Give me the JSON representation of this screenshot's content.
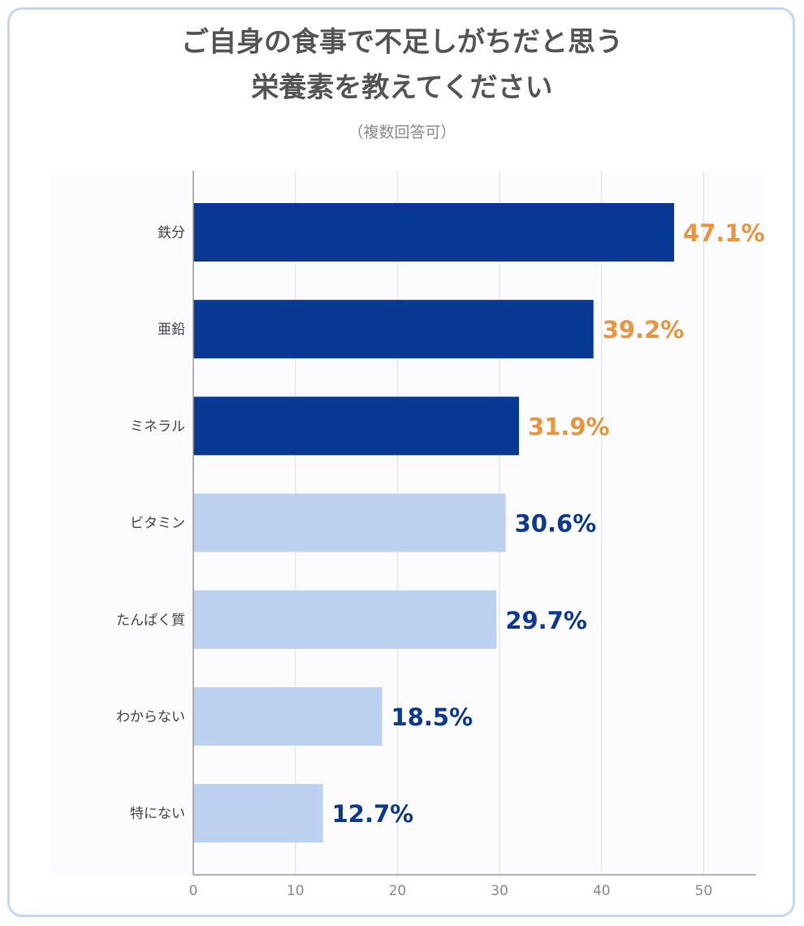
{
  "chart_data": {
    "type": "bar",
    "orientation": "horizontal",
    "title_lines": [
      "ご自身の食事で不足しがちだと思う",
      "栄養素を教えてください"
    ],
    "subtitle": "（複数回答可）",
    "categories": [
      "鉄分",
      "亜鉛",
      "ミネラル",
      "ビタミン",
      "たんぱく質",
      "わからない",
      "特にない"
    ],
    "values": [
      47.1,
      39.2,
      31.9,
      30.6,
      29.7,
      18.5,
      12.7
    ],
    "value_labels": [
      "47.1%",
      "39.2%",
      "31.9%",
      "30.6%",
      "29.7%",
      "18.5%",
      "12.7%"
    ],
    "highlight_top": 3,
    "xlim": [
      0,
      55
    ],
    "xticks": [
      0,
      10,
      20,
      30,
      40,
      50
    ],
    "grid": true,
    "legend": "none",
    "colors": {
      "highlight_bar": "#063894",
      "normal_bar": "#bcd1f0",
      "highlight_label": "#e8953f",
      "normal_label": "#0b3a8f",
      "grid": "#e6e6e6",
      "axis": "#999999"
    }
  }
}
